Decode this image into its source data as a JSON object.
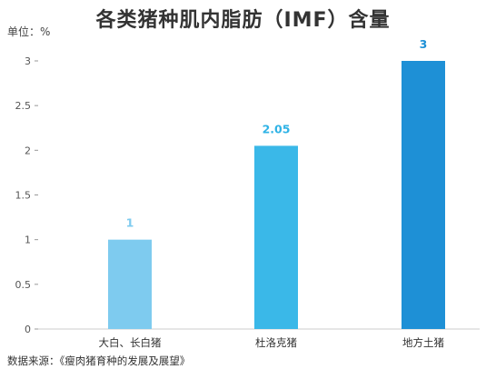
{
  "chart_data": {
    "type": "bar",
    "title": "各类猪种肌内脂肪（IMF）含量",
    "unit_label": "单位：%",
    "categories": [
      "大白、长白猪",
      "杜洛克猪",
      "地方土猪"
    ],
    "values": [
      1,
      2.05,
      3
    ],
    "data_labels": [
      "1",
      "2.05",
      "3"
    ],
    "bar_colors": [
      "#7ecbef",
      "#3ab8e8",
      "#1e90d6"
    ],
    "label_colors": [
      "#7ecbef",
      "#2fb3e6",
      "#1e90d6"
    ],
    "ylim": [
      0,
      3.2
    ],
    "yticks": [
      "0",
      "0.5",
      "1",
      "1.5",
      "2",
      "2.5",
      "3"
    ],
    "ytick_values": [
      0,
      0.5,
      1,
      1.5,
      2,
      2.5,
      3
    ],
    "grid": false,
    "source": "数据来源：《瘦肉猪育种的发展及展望》"
  }
}
